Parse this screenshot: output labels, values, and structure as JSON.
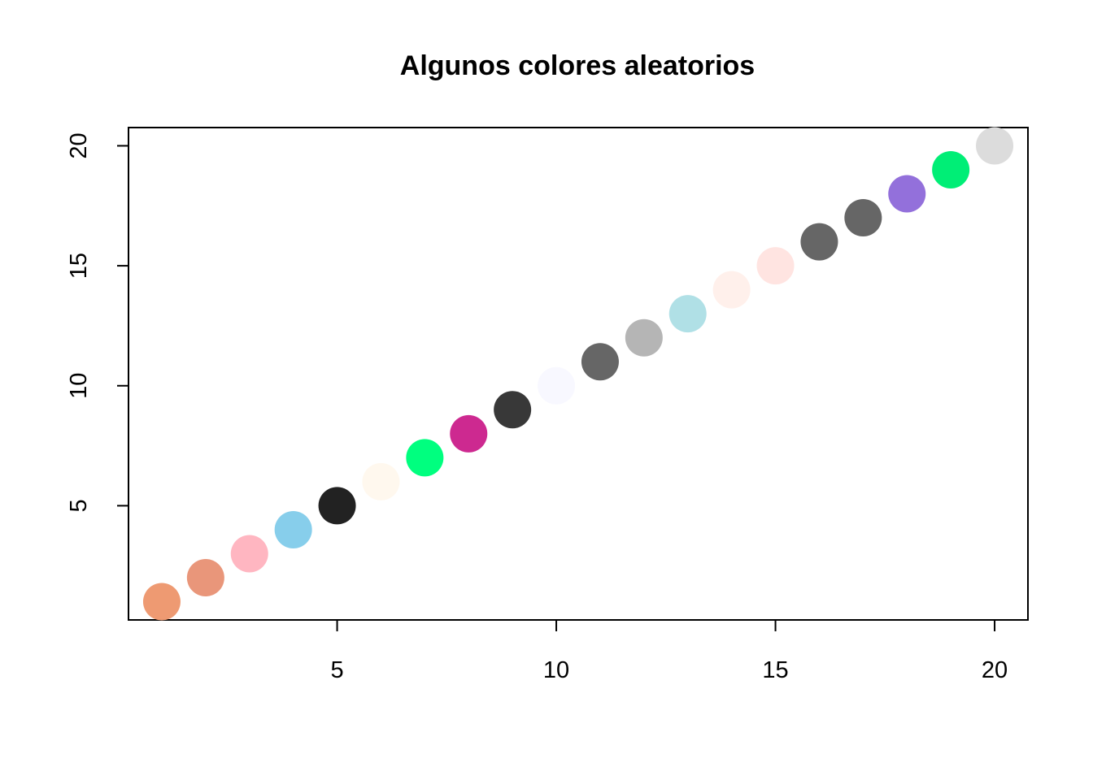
{
  "chart_data": {
    "type": "scatter",
    "title": "Algunos colores aleatorios",
    "xlabel": "",
    "ylabel": "",
    "xlim": [
      0.24,
      20.76
    ],
    "ylim": [
      0.24,
      20.76
    ],
    "xticks": [
      5,
      10,
      15,
      20
    ],
    "yticks": [
      5,
      10,
      15,
      20
    ],
    "xtick_labels": [
      "5",
      "10",
      "15",
      "20"
    ],
    "ytick_labels": [
      "5",
      "10",
      "15",
      "20"
    ],
    "grid": false,
    "x": [
      1,
      2,
      3,
      4,
      5,
      6,
      7,
      8,
      9,
      10,
      11,
      12,
      13,
      14,
      15,
      16,
      17,
      18,
      19,
      20
    ],
    "y": [
      1,
      2,
      3,
      4,
      5,
      6,
      7,
      8,
      9,
      10,
      11,
      12,
      13,
      14,
      15,
      16,
      17,
      18,
      19,
      20
    ],
    "colors": [
      "#EE9A72",
      "#E9967A",
      "#FFB6C1",
      "#87CEEB",
      "#222222",
      "#FFF8EE",
      "#00FF7F",
      "#CD2990",
      "#383838",
      "#F8F8FF",
      "#666666",
      "#B5B5B5",
      "#B0E0E6",
      "#FFF0EB",
      "#FFE4E1",
      "#666666",
      "#666666",
      "#9370DB",
      "#00EE76",
      "#DCDCDC"
    ]
  }
}
